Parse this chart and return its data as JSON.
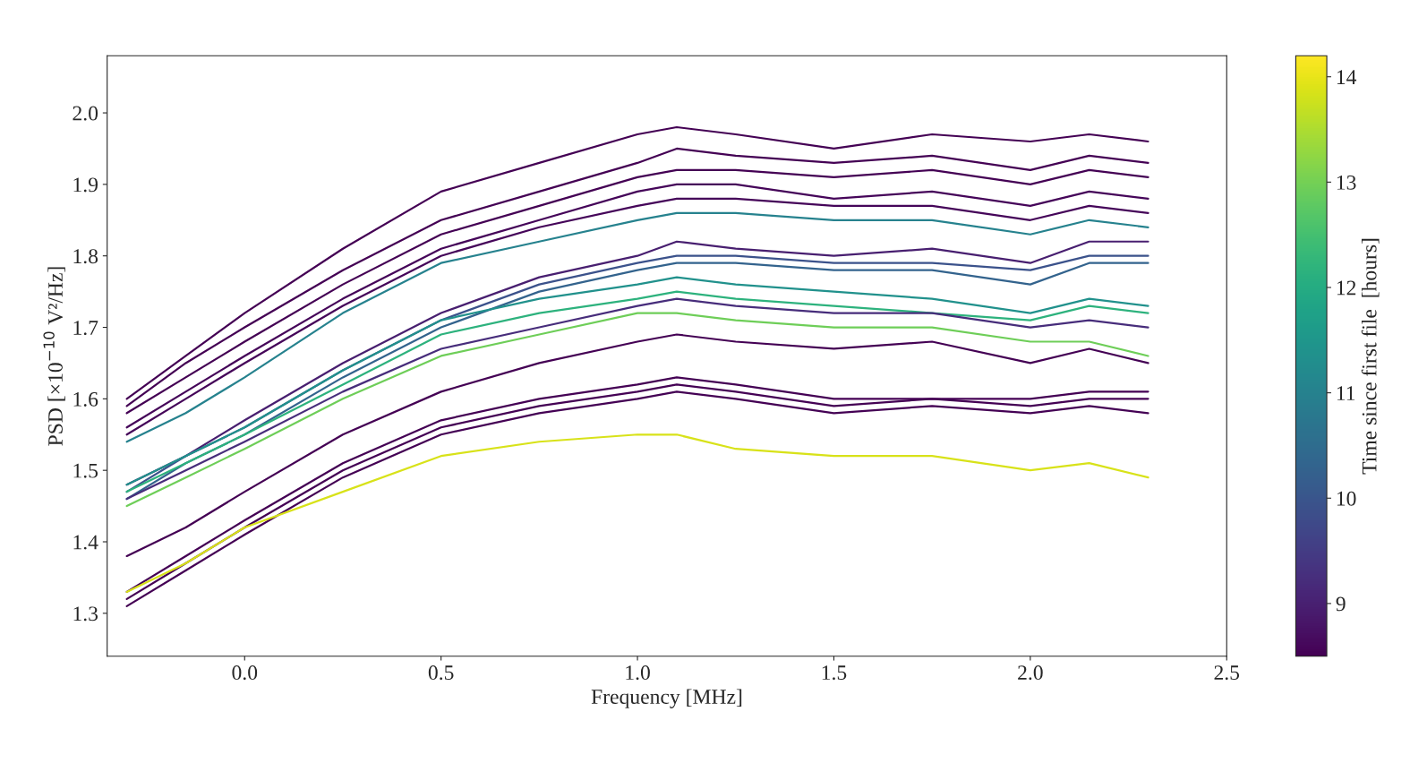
{
  "chart_data": {
    "type": "line",
    "xlabel": "Frequency [MHz]",
    "ylabel": "PSD [×10$^{−10}$ V²/Hz]",
    "clabel": "Time since first file  [hours]",
    "x": [
      -0.3,
      -0.15,
      0,
      0.25,
      0.5,
      0.75,
      1.0,
      1.1,
      1.25,
      1.5,
      1.75,
      2.0,
      2.15,
      2.3
    ],
    "series": [
      {
        "color": "#440154",
        "values": [
          1.6,
          1.66,
          1.72,
          1.81,
          1.89,
          1.93,
          1.97,
          1.98,
          1.97,
          1.95,
          1.97,
          1.96,
          1.97,
          1.96
        ]
      },
      {
        "color": "#440154",
        "values": [
          1.59,
          1.65,
          1.7,
          1.78,
          1.85,
          1.89,
          1.93,
          1.95,
          1.94,
          1.93,
          1.94,
          1.92,
          1.94,
          1.93
        ]
      },
      {
        "color": "#440154",
        "values": [
          1.58,
          1.63,
          1.68,
          1.76,
          1.83,
          1.87,
          1.91,
          1.92,
          1.92,
          1.91,
          1.92,
          1.9,
          1.92,
          1.91
        ]
      },
      {
        "color": "#450559",
        "values": [
          1.56,
          1.61,
          1.66,
          1.74,
          1.81,
          1.85,
          1.89,
          1.9,
          1.9,
          1.88,
          1.89,
          1.87,
          1.89,
          1.88
        ]
      },
      {
        "color": "#450559",
        "values": [
          1.55,
          1.6,
          1.65,
          1.73,
          1.8,
          1.84,
          1.87,
          1.88,
          1.88,
          1.87,
          1.87,
          1.85,
          1.87,
          1.86
        ]
      },
      {
        "color": "#26828e",
        "values": [
          1.54,
          1.58,
          1.63,
          1.72,
          1.79,
          1.82,
          1.85,
          1.86,
          1.86,
          1.85,
          1.85,
          1.83,
          1.85,
          1.84
        ]
      },
      {
        "color": "#481f70",
        "values": [
          1.48,
          1.52,
          1.57,
          1.65,
          1.72,
          1.77,
          1.8,
          1.82,
          1.81,
          1.8,
          1.81,
          1.79,
          1.82,
          1.82
        ]
      },
      {
        "color": "#3b528b",
        "values": [
          1.47,
          1.52,
          1.56,
          1.64,
          1.71,
          1.76,
          1.79,
          1.8,
          1.8,
          1.79,
          1.79,
          1.78,
          1.8,
          1.8
        ]
      },
      {
        "color": "#33638d",
        "values": [
          1.46,
          1.51,
          1.55,
          1.63,
          1.7,
          1.75,
          1.78,
          1.79,
          1.79,
          1.78,
          1.78,
          1.76,
          1.79,
          1.79
        ]
      },
      {
        "color": "#21918c",
        "values": [
          1.48,
          1.52,
          1.56,
          1.64,
          1.71,
          1.74,
          1.76,
          1.77,
          1.76,
          1.75,
          1.74,
          1.72,
          1.74,
          1.73
        ]
      },
      {
        "color": "#2db27d",
        "values": [
          1.47,
          1.51,
          1.55,
          1.62,
          1.69,
          1.72,
          1.74,
          1.75,
          1.74,
          1.73,
          1.72,
          1.71,
          1.73,
          1.72
        ]
      },
      {
        "color": "#472d7b",
        "values": [
          1.46,
          1.5,
          1.54,
          1.61,
          1.67,
          1.7,
          1.73,
          1.74,
          1.73,
          1.72,
          1.72,
          1.7,
          1.71,
          1.7
        ]
      },
      {
        "color": "#6ece58",
        "values": [
          1.45,
          1.49,
          1.53,
          1.6,
          1.66,
          1.69,
          1.72,
          1.72,
          1.71,
          1.7,
          1.7,
          1.68,
          1.68,
          1.66
        ]
      },
      {
        "color": "#440154",
        "values": [
          1.38,
          1.42,
          1.47,
          1.55,
          1.61,
          1.65,
          1.68,
          1.69,
          1.68,
          1.67,
          1.68,
          1.65,
          1.67,
          1.65
        ]
      },
      {
        "color": "#440154",
        "values": [
          1.33,
          1.38,
          1.43,
          1.51,
          1.57,
          1.6,
          1.62,
          1.63,
          1.62,
          1.6,
          1.6,
          1.6,
          1.61,
          1.61
        ]
      },
      {
        "color": "#440154",
        "values": [
          1.32,
          1.37,
          1.42,
          1.5,
          1.56,
          1.59,
          1.61,
          1.62,
          1.61,
          1.59,
          1.6,
          1.59,
          1.6,
          1.6
        ]
      },
      {
        "color": "#440154",
        "values": [
          1.31,
          1.36,
          1.41,
          1.49,
          1.55,
          1.58,
          1.6,
          1.61,
          1.6,
          1.58,
          1.59,
          1.58,
          1.59,
          1.58
        ]
      },
      {
        "color": "#d8e219",
        "values": [
          1.33,
          1.37,
          1.42,
          1.47,
          1.52,
          1.54,
          1.55,
          1.55,
          1.53,
          1.52,
          1.52,
          1.5,
          1.51,
          1.49
        ]
      }
    ],
    "xlim": [
      -0.35,
      2.5
    ],
    "xticks": [
      {
        "value": 0,
        "label": "0.0"
      },
      0.5,
      {
        "value": 1,
        "label": "1.0"
      },
      1.5,
      {
        "value": 2,
        "label": "2.0"
      },
      2.5
    ],
    "ylim": [
      1.24,
      2.08
    ],
    "yticks": [
      1.3,
      1.4,
      1.5,
      1.6,
      1.7,
      1.8,
      1.9,
      {
        "value": 2,
        "label": "2.0"
      }
    ],
    "clim": [
      8.5,
      14.2
    ],
    "cticks": [
      9,
      10,
      11,
      12,
      13,
      14
    ],
    "grid": false,
    "legend": false
  }
}
